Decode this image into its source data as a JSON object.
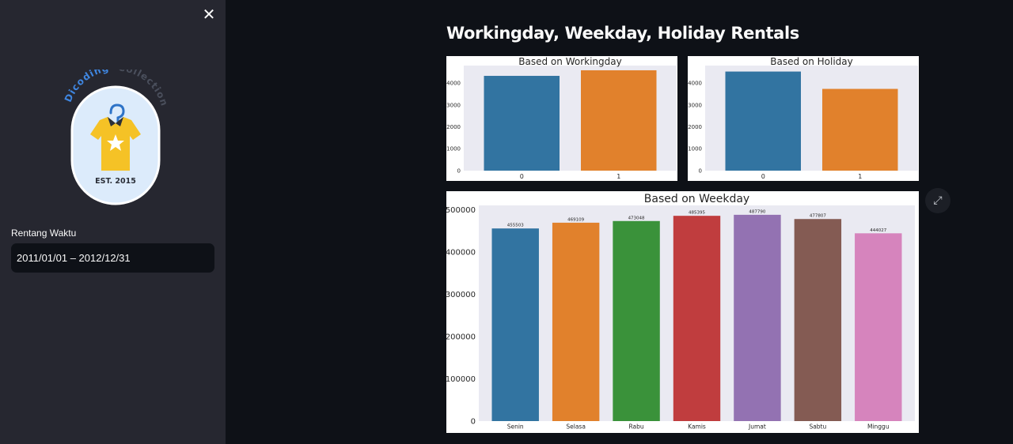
{
  "sidebar": {
    "close_icon": "close-icon",
    "logo": {
      "arc_text_1": "Dicoding",
      "arc_text_2": "Collection",
      "est": "EST. 2015"
    },
    "date_label": "Rentang Waktu",
    "date_value": "2011/01/01 – 2012/12/31"
  },
  "main": {
    "title": "Workingday, Weekday, Holiday Rentals",
    "expand_icon": "fullscreen-expand-icon"
  },
  "colors": {
    "blue": "#3274a1",
    "orange": "#e1812c",
    "green": "#3a923a",
    "red": "#c03d3e",
    "purple": "#9372b2",
    "brown": "#845b53",
    "pink": "#d684bd",
    "plot_bg": "#eaeaf2"
  },
  "chart_data": [
    {
      "type": "bar",
      "title": "Based on Workingday",
      "categories": [
        "0",
        "1"
      ],
      "values": [
        4330,
        4585
      ],
      "ylim": [
        0,
        4800
      ],
      "yticks": [
        0,
        1000,
        2000,
        3000,
        4000
      ],
      "colors": [
        "#3274a1",
        "#e1812c"
      ],
      "grid": false
    },
    {
      "type": "bar",
      "title": "Based on Holiday",
      "categories": [
        "0",
        "1"
      ],
      "values": [
        4527,
        3735
      ],
      "ylim": [
        0,
        4800
      ],
      "yticks": [
        0,
        1000,
        2000,
        3000,
        4000
      ],
      "colors": [
        "#3274a1",
        "#e1812c"
      ],
      "grid": false
    },
    {
      "type": "bar",
      "title": "Based on Weekday",
      "categories": [
        "Senin",
        "Selasa",
        "Rabu",
        "Kamis",
        "Jumat",
        "Sabtu",
        "Minggu"
      ],
      "values": [
        455503,
        469109,
        473048,
        485395,
        487790,
        477807,
        444027
      ],
      "labels": [
        "455503",
        "469109",
        "473048",
        "485395",
        "487790",
        "477807",
        "444027"
      ],
      "ylim": [
        0,
        510000
      ],
      "yticks": [
        0,
        100000,
        200000,
        300000,
        400000,
        500000
      ],
      "colors": [
        "#3274a1",
        "#e1812c",
        "#3a923a",
        "#c03d3e",
        "#9372b2",
        "#845b53",
        "#d684bd"
      ],
      "grid": false
    }
  ]
}
